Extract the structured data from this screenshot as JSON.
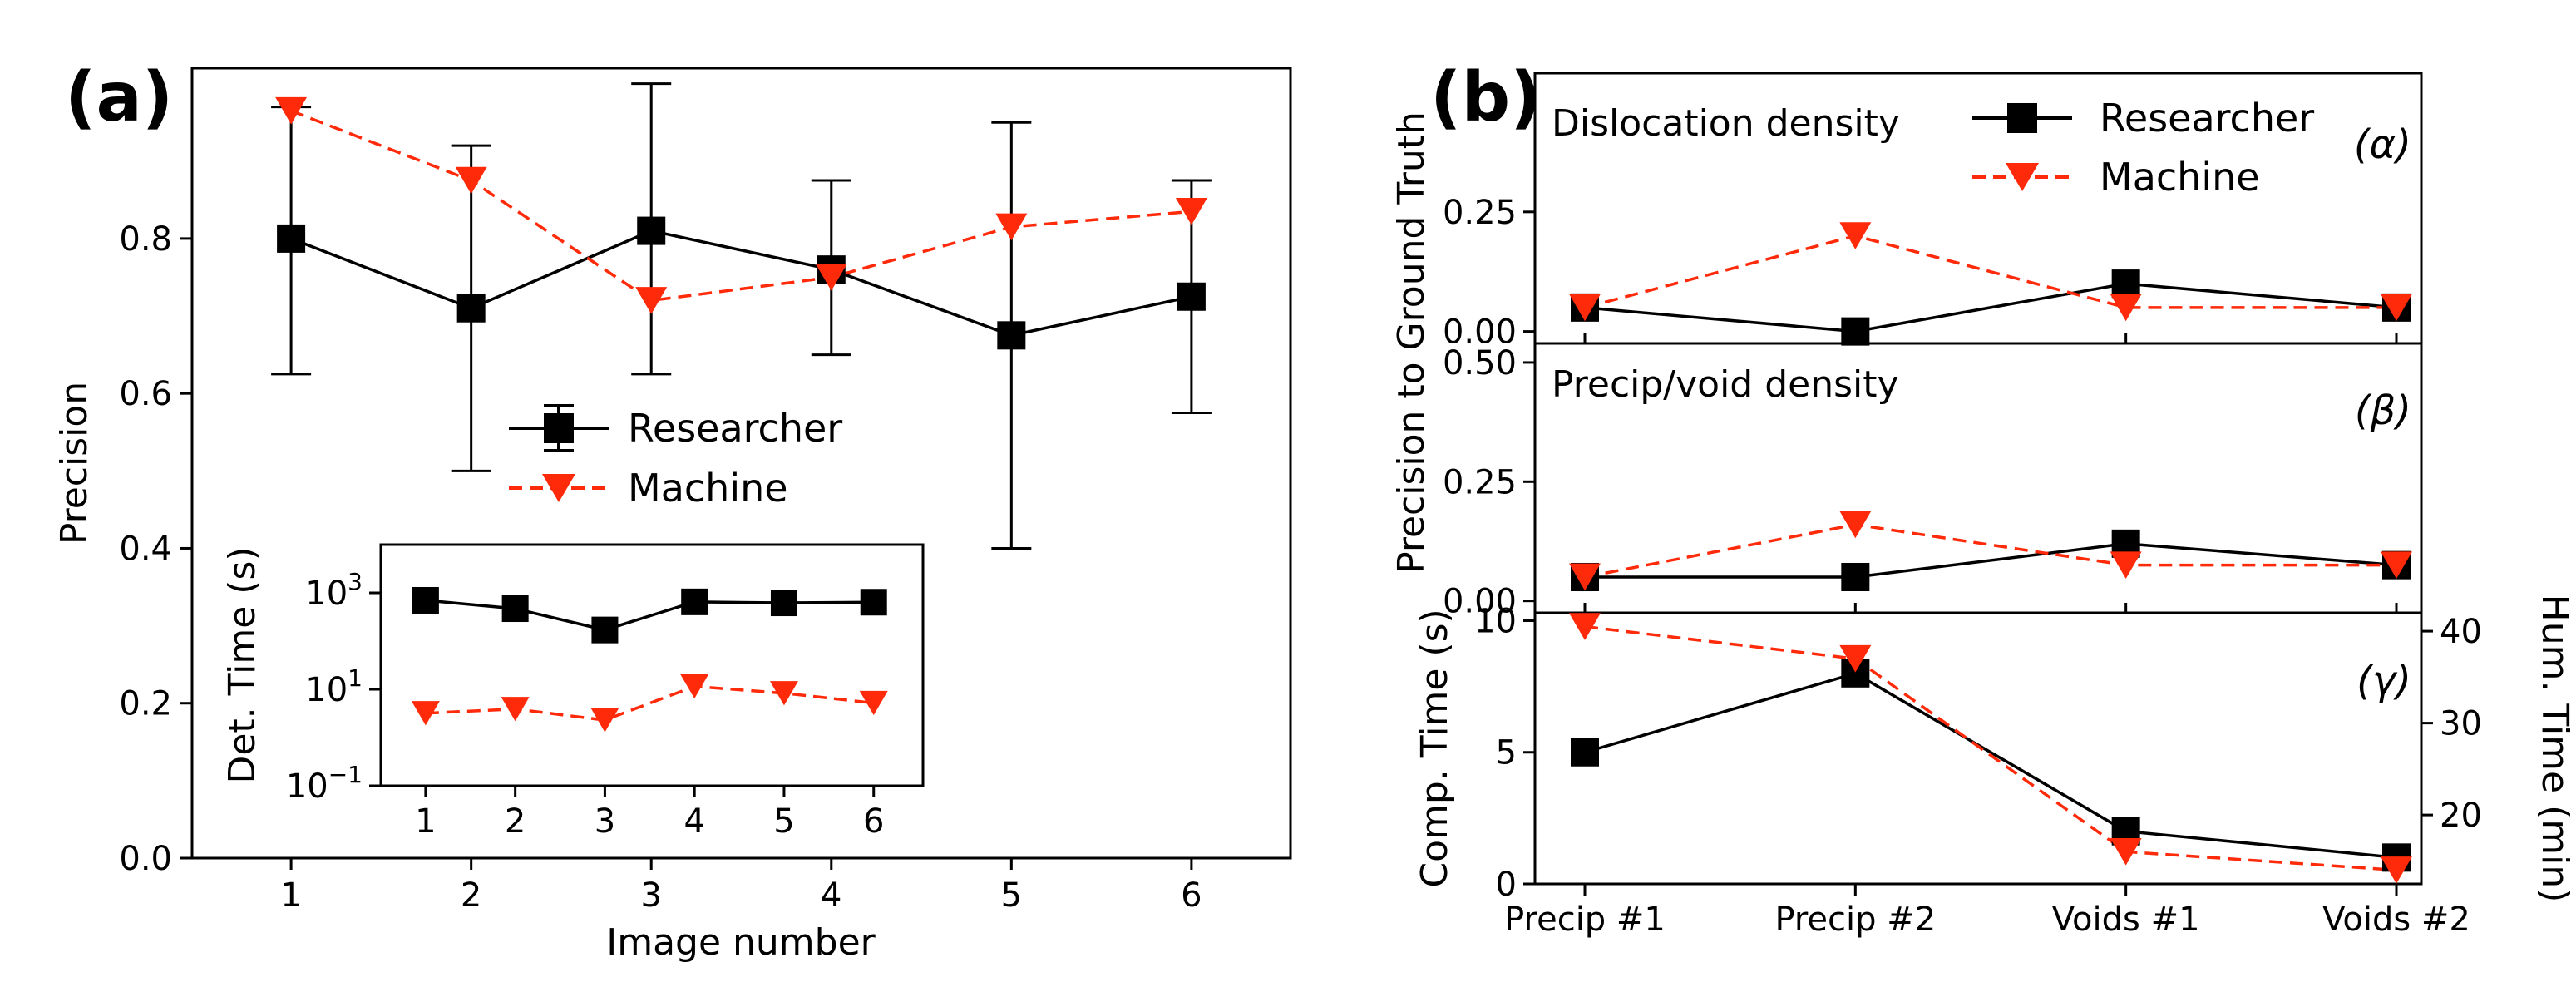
{
  "colors": {
    "researcher": "#000000",
    "machine": "#ff2a0a"
  },
  "chart_data": [
    {
      "id": "a-main",
      "type": "line",
      "panel_label": "(a)",
      "xlabel": "Image number",
      "ylabel": "Precision",
      "xlim": [
        0.45,
        6.55
      ],
      "ylim": [
        0.0,
        1.02
      ],
      "xticks": [
        1,
        2,
        3,
        4,
        5,
        6
      ],
      "yticks": [
        0.0,
        0.2,
        0.4,
        0.6,
        0.8
      ],
      "ytick_labels": [
        "0.0",
        "0.2",
        "0.4",
        "0.6",
        "0.8"
      ],
      "legend": {
        "location": "center",
        "entries": [
          "Researcher",
          "Machine"
        ]
      },
      "series": [
        {
          "name": "Researcher",
          "x": [
            1,
            2,
            3,
            4,
            5,
            6
          ],
          "y": [
            0.8,
            0.71,
            0.81,
            0.76,
            0.675,
            0.725
          ],
          "err_low": [
            0.625,
            0.5,
            0.625,
            0.65,
            0.4,
            0.575
          ],
          "err_high": [
            0.97,
            0.92,
            1.0,
            0.875,
            0.95,
            0.875
          ]
        },
        {
          "name": "Machine",
          "x": [
            1,
            2,
            3,
            4,
            5,
            6
          ],
          "y": [
            0.965,
            0.875,
            0.72,
            0.75,
            0.815,
            0.835
          ]
        }
      ]
    },
    {
      "id": "a-inset",
      "type": "line",
      "ylabel": "Det. Time (s)",
      "yscale": "log",
      "xlim": [
        0.5,
        6.55
      ],
      "ylim_log10": [
        -1,
        4
      ],
      "xticks": [
        1,
        2,
        3,
        4,
        5,
        6
      ],
      "ytick_bases": [
        "10",
        "10",
        "10"
      ],
      "ytick_exps": [
        "3",
        "1",
        "−1"
      ],
      "ytick_log10": [
        3,
        1,
        -1
      ],
      "series": [
        {
          "name": "Researcher",
          "x": [
            1,
            2,
            3,
            4,
            5,
            6
          ],
          "y": [
            700,
            470,
            170,
            650,
            620,
            640
          ]
        },
        {
          "name": "Machine",
          "x": [
            1,
            2,
            3,
            4,
            5,
            6
          ],
          "y": [
            3.2,
            3.9,
            2.3,
            11.5,
            8.3,
            5.2
          ]
        }
      ]
    },
    {
      "id": "b-alpha",
      "type": "line",
      "panel_label": "(b)",
      "subtitle": "Dislocation density",
      "tag": "(α)",
      "ylabel": "Precision to Ground Truth",
      "categories": [
        "Precip #1",
        "Precip #2",
        "Voids #1",
        "Voids #2"
      ],
      "ylim": [
        -0.025,
        0.54
      ],
      "yticks": [
        0.0,
        0.25
      ],
      "ytick_labels": [
        "0.00",
        "0.25"
      ],
      "legend": {
        "location": "top-right",
        "entries": [
          "Researcher",
          "Machine"
        ]
      },
      "series": [
        {
          "name": "Researcher",
          "values": [
            0.05,
            0.0,
            0.1,
            0.05
          ]
        },
        {
          "name": "Machine",
          "values": [
            0.05,
            0.2,
            0.05,
            0.05
          ]
        }
      ]
    },
    {
      "id": "b-beta",
      "type": "line",
      "subtitle": "Precip/void density",
      "tag": "(β)",
      "categories": [
        "Precip #1",
        "Precip #2",
        "Voids #1",
        "Voids #2"
      ],
      "ylim": [
        -0.025,
        0.54
      ],
      "yticks": [
        0.0,
        0.25,
        0.5
      ],
      "ytick_labels": [
        "0.00",
        "0.25",
        "0.50"
      ],
      "series": [
        {
          "name": "Researcher",
          "values": [
            0.05,
            0.05,
            0.12,
            0.075
          ]
        },
        {
          "name": "Machine",
          "values": [
            0.05,
            0.16,
            0.075,
            0.075
          ]
        }
      ]
    },
    {
      "id": "b-gamma",
      "type": "line",
      "tag": "(γ)",
      "ylabel": "Comp. Time (s)",
      "ylabel_right": "Hum. Time (min)",
      "categories": [
        "Precip #1",
        "Precip #2",
        "Voids #1",
        "Voids #2"
      ],
      "ylim": [
        0,
        10.3
      ],
      "yticks": [
        0,
        5,
        10
      ],
      "ytick_labels": [
        "0",
        "5",
        "10"
      ],
      "ylim_right": [
        12.5,
        42
      ],
      "yticks_right": [
        20,
        30,
        40
      ],
      "ytick_labels_right": [
        "20",
        "30",
        "40"
      ],
      "series": [
        {
          "name": "Researcher (Comp. Time)",
          "axis": "left",
          "values": [
            5,
            8,
            2,
            1
          ]
        },
        {
          "name": "Machine (Hum. Time)",
          "axis": "right",
          "values": [
            40.5,
            37.0,
            16.0,
            14.0
          ]
        }
      ]
    }
  ]
}
